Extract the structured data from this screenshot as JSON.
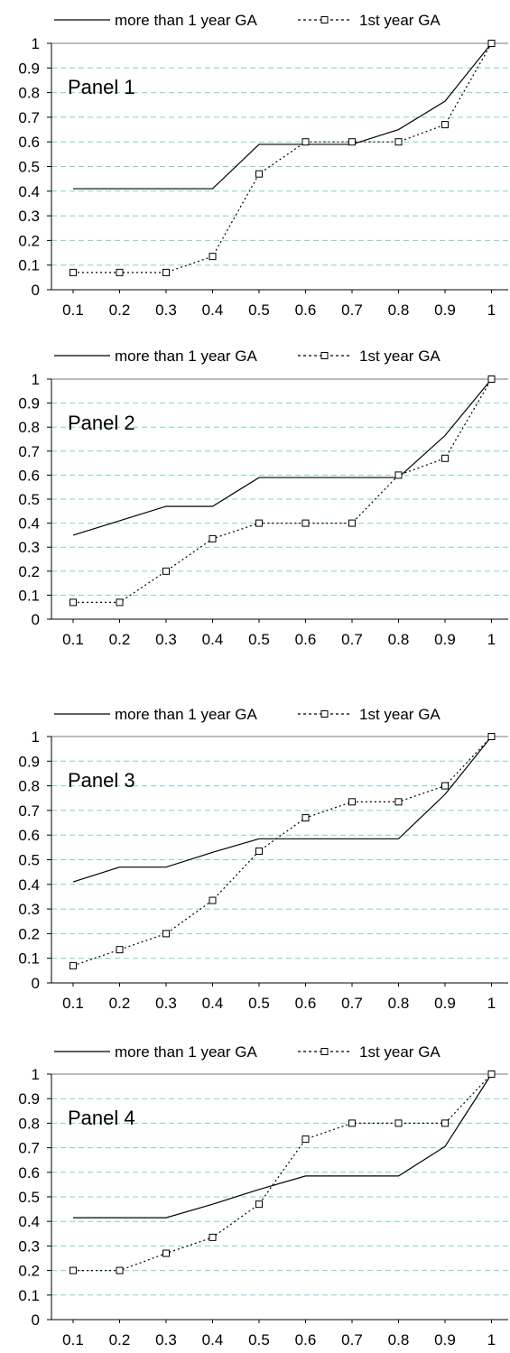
{
  "legend": {
    "series1": "more than 1 year GA",
    "series2": "1st year GA"
  },
  "colors": {
    "line": "#000000",
    "grid": "#7fcfd4",
    "axis": "#000000",
    "background": "#ffffff"
  },
  "chart_data": [
    {
      "type": "line",
      "title": "Panel 1",
      "x": [
        0.1,
        0.2,
        0.3,
        0.4,
        0.5,
        0.6,
        0.7,
        0.8,
        0.9,
        1
      ],
      "xticks": [
        "0.1",
        "0.2",
        "0.3",
        "0.4",
        "0.5",
        "0.6",
        "0.7",
        "0.8",
        "0.9",
        "1"
      ],
      "yticks": [
        "0",
        "0.1",
        "0.2",
        "0.3",
        "0.4",
        "0.5",
        "0.6",
        "0.7",
        "0.8",
        "0.9",
        "1"
      ],
      "ylim": [
        0,
        1
      ],
      "grid": "horizontal dashed",
      "legend_position": "top",
      "series": [
        {
          "name": "more than 1 year GA",
          "style": "solid",
          "values": [
            0.41,
            0.41,
            0.41,
            0.41,
            0.59,
            0.59,
            0.59,
            0.65,
            0.765,
            1.0
          ]
        },
        {
          "name": "1st year GA",
          "style": "dotted-square",
          "values": [
            0.07,
            0.07,
            0.07,
            0.135,
            0.47,
            0.6,
            0.6,
            0.6,
            0.67,
            1.0
          ]
        }
      ]
    },
    {
      "type": "line",
      "title": "Panel 2",
      "x": [
        0.1,
        0.2,
        0.3,
        0.4,
        0.5,
        0.6,
        0.7,
        0.8,
        0.9,
        1
      ],
      "xticks": [
        "0.1",
        "0.2",
        "0.3",
        "0.4",
        "0.5",
        "0.6",
        "0.7",
        "0.8",
        "0.9",
        "1"
      ],
      "yticks": [
        "0",
        "0.1",
        "0.2",
        "0.3",
        "0.4",
        "0.5",
        "0.6",
        "0.7",
        "0.8",
        "0.9",
        "1"
      ],
      "ylim": [
        0,
        1
      ],
      "grid": "horizontal dashed",
      "legend_position": "top",
      "series": [
        {
          "name": "more than 1 year GA",
          "style": "solid",
          "values": [
            0.35,
            0.41,
            0.47,
            0.47,
            0.59,
            0.59,
            0.59,
            0.59,
            0.765,
            1.0
          ]
        },
        {
          "name": "1st year GA",
          "style": "dotted-square",
          "values": [
            0.07,
            0.07,
            0.2,
            0.335,
            0.4,
            0.4,
            0.4,
            0.6,
            0.67,
            1.0
          ]
        }
      ]
    },
    {
      "type": "line",
      "title": "Panel 3",
      "x": [
        0.1,
        0.2,
        0.3,
        0.4,
        0.5,
        0.6,
        0.7,
        0.8,
        0.9,
        1
      ],
      "xticks": [
        "0.1",
        "0.2",
        "0.3",
        "0.4",
        "0.5",
        "0.6",
        "0.7",
        "0.8",
        "0.9",
        "1"
      ],
      "yticks": [
        "0",
        "0.1",
        "0.2",
        "0.3",
        "0.4",
        "0.5",
        "0.6",
        "0.7",
        "0.8",
        "0.9",
        "1"
      ],
      "ylim": [
        0,
        1
      ],
      "grid": "horizontal dashed",
      "legend_position": "top",
      "series": [
        {
          "name": "more than 1 year GA",
          "style": "solid",
          "values": [
            0.41,
            0.47,
            0.47,
            0.53,
            0.585,
            0.585,
            0.585,
            0.585,
            0.765,
            1.0
          ]
        },
        {
          "name": "1st year GA",
          "style": "dotted-square",
          "values": [
            0.07,
            0.135,
            0.2,
            0.335,
            0.535,
            0.67,
            0.735,
            0.735,
            0.8,
            1.0
          ]
        }
      ]
    },
    {
      "type": "line",
      "title": "Panel 4",
      "x": [
        0.1,
        0.2,
        0.3,
        0.4,
        0.5,
        0.6,
        0.7,
        0.8,
        0.9,
        1
      ],
      "xticks": [
        "0.1",
        "0.2",
        "0.3",
        "0.4",
        "0.5",
        "0.6",
        "0.7",
        "0.8",
        "0.9",
        "1"
      ],
      "yticks": [
        "0",
        "0.1",
        "0.2",
        "0.3",
        "0.4",
        "0.5",
        "0.6",
        "0.7",
        "0.8",
        "0.9",
        "1"
      ],
      "ylim": [
        0,
        1
      ],
      "grid": "horizontal dashed",
      "legend_position": "top",
      "series": [
        {
          "name": "more than 1 year GA",
          "style": "solid",
          "values": [
            0.415,
            0.415,
            0.415,
            0.47,
            0.53,
            0.585,
            0.585,
            0.585,
            0.705,
            1.0
          ]
        },
        {
          "name": "1st year GA",
          "style": "dotted-square",
          "values": [
            0.2,
            0.2,
            0.27,
            0.335,
            0.47,
            0.735,
            0.8,
            0.8,
            0.8,
            1.0
          ]
        }
      ]
    }
  ]
}
